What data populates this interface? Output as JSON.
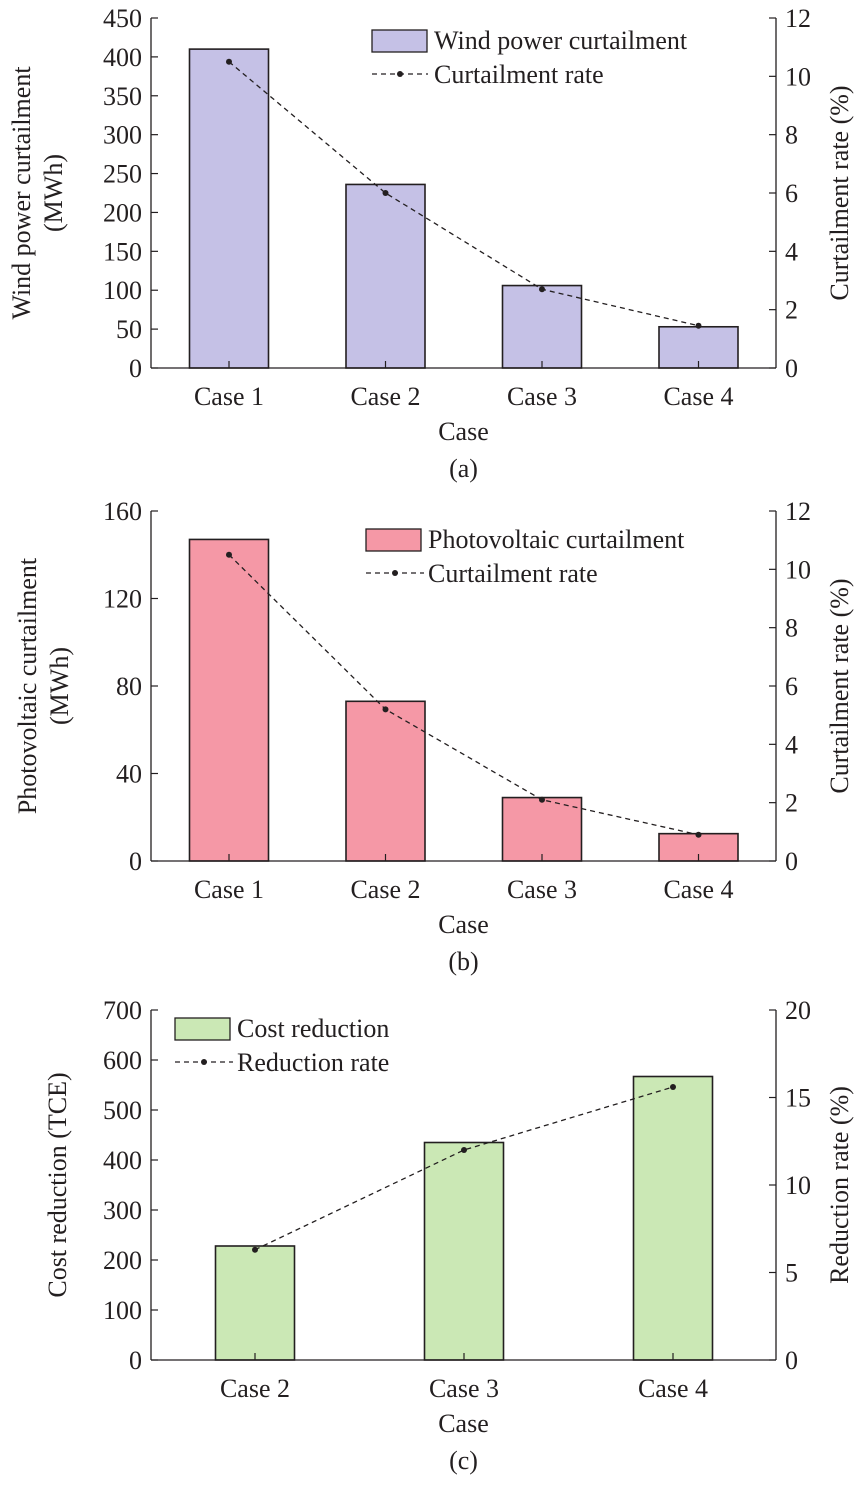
{
  "chart_data": [
    {
      "type": "bar",
      "panel_label": "(a)",
      "xlabel": "Case",
      "ylabel_lines": [
        "Wind power curtailment",
        "(MWh)"
      ],
      "y2label": "Curtailment rate (%)",
      "categories": [
        "Case 1",
        "Case 2",
        "Case 3",
        "Case 4"
      ],
      "ylim": [
        0,
        450
      ],
      "yticks": [
        0,
        50,
        100,
        150,
        200,
        250,
        300,
        350,
        400,
        450
      ],
      "y2lim": [
        0,
        12
      ],
      "y2ticks": [
        0,
        2,
        4,
        6,
        8,
        10,
        12
      ],
      "legend_position": "top-right",
      "bar_color": "#c5c1e6",
      "series": [
        {
          "name": "Wind power curtailment",
          "kind": "bar",
          "axis": "left",
          "values": [
            410,
            236,
            106,
            53
          ]
        },
        {
          "name": "Curtailment rate",
          "kind": "line",
          "axis": "right",
          "values": [
            10.5,
            6.0,
            2.7,
            1.45
          ]
        }
      ]
    },
    {
      "type": "bar",
      "panel_label": "(b)",
      "xlabel": "Case",
      "ylabel_lines": [
        "Photovoltaic curtailment",
        "(MWh)"
      ],
      "y2label": "Curtailment rate (%)",
      "categories": [
        "Case 1",
        "Case 2",
        "Case 3",
        "Case 4"
      ],
      "ylim": [
        0,
        160
      ],
      "yticks": [
        0,
        40,
        80,
        120,
        160
      ],
      "y2lim": [
        0,
        12
      ],
      "y2ticks": [
        0,
        2,
        4,
        6,
        8,
        10,
        12
      ],
      "legend_position": "top-right",
      "bar_color": "#f598a6",
      "series": [
        {
          "name": "Photovoltaic curtailment",
          "kind": "bar",
          "axis": "left",
          "values": [
            147,
            73,
            29,
            12.5
          ]
        },
        {
          "name": "Curtailment rate",
          "kind": "line",
          "axis": "right",
          "values": [
            10.5,
            5.2,
            2.1,
            0.9
          ]
        }
      ]
    },
    {
      "type": "bar",
      "panel_label": "(c)",
      "xlabel": "Case",
      "ylabel_lines": [
        "Cost reduction (TCE)"
      ],
      "y2label": "Reduction rate (%)",
      "categories": [
        "Case 2",
        "Case 3",
        "Case 4"
      ],
      "ylim": [
        0,
        700
      ],
      "yticks": [
        0,
        100,
        200,
        300,
        400,
        500,
        600,
        700
      ],
      "y2lim": [
        0,
        20
      ],
      "y2ticks": [
        0,
        5,
        10,
        15,
        20
      ],
      "legend_position": "top-left",
      "bar_color": "#cbe8b5",
      "series": [
        {
          "name": "Cost reduction",
          "kind": "bar",
          "axis": "left",
          "values": [
            228,
            435,
            567
          ]
        },
        {
          "name": "Reduction rate",
          "kind": "line",
          "axis": "right",
          "values": [
            6.3,
            12.0,
            15.6
          ]
        }
      ]
    }
  ]
}
